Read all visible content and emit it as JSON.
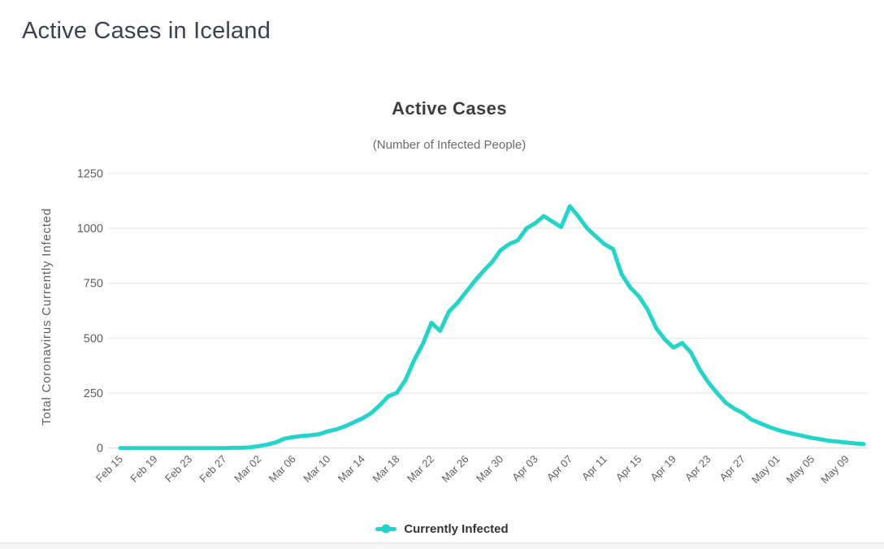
{
  "page": {
    "title": "Active Cases in Iceland"
  },
  "chart": {
    "title": "Active Cases",
    "subtitle": "(Number of Infected People)",
    "y_axis_title": "Total Coronavirus Currently Infected",
    "legend_label": "Currently Infected",
    "line_color": "#22d5ca",
    "grid_color": "#e6e6e6",
    "axis_line_color": "#d6d6d6"
  },
  "chart_data": {
    "type": "line",
    "title": "Active Cases",
    "subtitle": "(Number of Infected People)",
    "xlabel": "",
    "ylabel": "Total Coronavirus Currently Infected",
    "series_name": "Currently Infected",
    "ylim": [
      0,
      1250
    ],
    "yticks": [
      0,
      250,
      500,
      750,
      1000,
      1250
    ],
    "x_tick_step": 4,
    "grid": true,
    "legend_position": "bottom",
    "categories": [
      "Feb 15",
      "Feb 16",
      "Feb 17",
      "Feb 18",
      "Feb 19",
      "Feb 20",
      "Feb 21",
      "Feb 22",
      "Feb 23",
      "Feb 24",
      "Feb 25",
      "Feb 26",
      "Feb 27",
      "Feb 28",
      "Feb 29",
      "Mar 01",
      "Mar 02",
      "Mar 03",
      "Mar 04",
      "Mar 05",
      "Mar 06",
      "Mar 07",
      "Mar 08",
      "Mar 09",
      "Mar 10",
      "Mar 11",
      "Mar 12",
      "Mar 13",
      "Mar 14",
      "Mar 15",
      "Mar 16",
      "Mar 17",
      "Mar 18",
      "Mar 19",
      "Mar 20",
      "Mar 21",
      "Mar 22",
      "Mar 23",
      "Mar 24",
      "Mar 25",
      "Mar 26",
      "Mar 27",
      "Mar 28",
      "Mar 29",
      "Mar 30",
      "Mar 31",
      "Apr 01",
      "Apr 02",
      "Apr 03",
      "Apr 04",
      "Apr 05",
      "Apr 06",
      "Apr 07",
      "Apr 08",
      "Apr 09",
      "Apr 10",
      "Apr 11",
      "Apr 12",
      "Apr 13",
      "Apr 14",
      "Apr 15",
      "Apr 16",
      "Apr 17",
      "Apr 18",
      "Apr 19",
      "Apr 20",
      "Apr 21",
      "Apr 22",
      "Apr 23",
      "Apr 24",
      "Apr 25",
      "Apr 26",
      "Apr 27",
      "Apr 28",
      "Apr 29",
      "Apr 30",
      "May 01",
      "May 02",
      "May 03",
      "May 04",
      "May 05",
      "May 06",
      "May 07",
      "May 08",
      "May 09",
      "May 10",
      "May 11"
    ],
    "values": [
      0,
      0,
      0,
      0,
      0,
      0,
      0,
      0,
      0,
      0,
      0,
      0,
      0,
      1,
      1,
      3,
      9,
      16,
      26,
      43,
      50,
      55,
      58,
      63,
      76,
      85,
      99,
      117,
      135,
      158,
      194,
      235,
      252,
      310,
      400,
      473,
      570,
      533,
      620,
      660,
      710,
      760,
      805,
      845,
      900,
      928,
      945,
      1000,
      1023,
      1055,
      1030,
      1005,
      1100,
      1053,
      1000,
      963,
      928,
      905,
      790,
      730,
      690,
      630,
      545,
      494,
      457,
      478,
      435,
      360,
      300,
      252,
      208,
      180,
      160,
      130,
      113,
      97,
      83,
      72,
      63,
      55,
      46,
      40,
      33,
      29,
      25,
      21,
      18
    ]
  }
}
